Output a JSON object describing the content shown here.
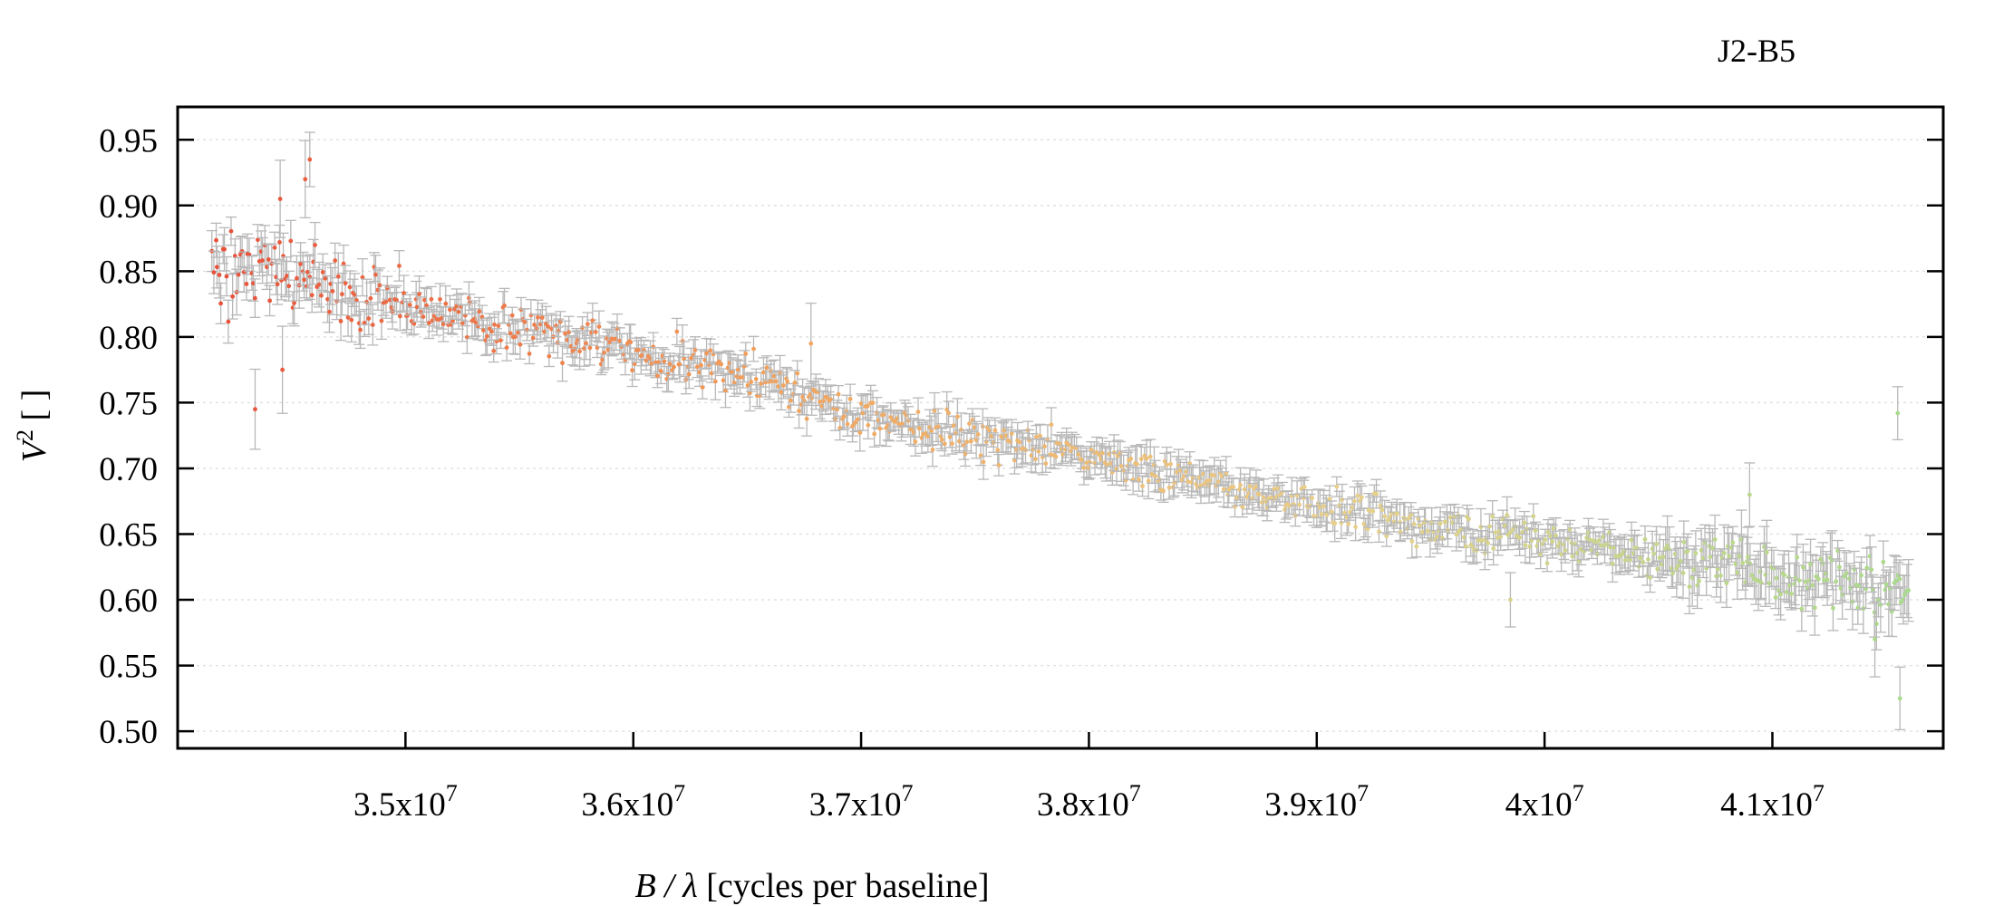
{
  "chart_data": {
    "type": "scatter",
    "title": "J2-B5",
    "xlabel_italic": "B / λ",
    "xlabel_rest": " [cycles per baseline]",
    "ylabel_base": "V",
    "ylabel_sup": "2",
    "ylabel_rest": " [ ]",
    "xlim": [
      34000000,
      41750000
    ],
    "ylim": [
      0.487,
      0.975
    ],
    "x_ticks": [
      {
        "value": 35000000,
        "mant": "3.5x10",
        "exp": "7"
      },
      {
        "value": 36000000,
        "mant": "3.6x10",
        "exp": "7"
      },
      {
        "value": 37000000,
        "mant": "3.7x10",
        "exp": "7"
      },
      {
        "value": 38000000,
        "mant": "3.8x10",
        "exp": "7"
      },
      {
        "value": 39000000,
        "mant": "3.9x10",
        "exp": "7"
      },
      {
        "value": 40000000,
        "mant": "4x10",
        "exp": "7"
      },
      {
        "value": 41000000,
        "mant": "4.1x10",
        "exp": "7"
      }
    ],
    "y_ticks": [
      {
        "value": 0.5,
        "label": "0.50"
      },
      {
        "value": 0.55,
        "label": "0.55"
      },
      {
        "value": 0.6,
        "label": "0.60"
      },
      {
        "value": 0.65,
        "label": "0.65"
      },
      {
        "value": 0.7,
        "label": "0.70"
      },
      {
        "value": 0.75,
        "label": "0.75"
      },
      {
        "value": 0.8,
        "label": "0.80"
      },
      {
        "value": 0.85,
        "label": "0.85"
      },
      {
        "value": 0.9,
        "label": "0.90"
      },
      {
        "value": 0.95,
        "label": "0.95"
      }
    ],
    "grid": "horizontal dotted",
    "legend": "none",
    "error_bars": true,
    "color_gradient": [
      "#e8503a",
      "#f3a35c",
      "#e9d08a",
      "#a8db8c"
    ],
    "error_bar_color": "#b8b8b8",
    "x_range": [
      34150000,
      41600000
    ],
    "point_count": 900,
    "trend": [
      [
        34150000,
        0.85
      ],
      [
        34600000,
        0.845
      ],
      [
        35000000,
        0.825
      ],
      [
        35500000,
        0.805
      ],
      [
        36000000,
        0.79
      ],
      [
        36500000,
        0.77
      ],
      [
        37000000,
        0.74
      ],
      [
        37500000,
        0.725
      ],
      [
        38000000,
        0.71
      ],
      [
        38500000,
        0.69
      ],
      [
        39000000,
        0.67
      ],
      [
        39500000,
        0.655
      ],
      [
        40000000,
        0.645
      ],
      [
        40500000,
        0.632
      ],
      [
        41000000,
        0.618
      ],
      [
        41600000,
        0.605
      ]
    ],
    "outliers": [
      {
        "x": 34340000,
        "y": 0.745
      },
      {
        "x": 34460000,
        "y": 0.775
      },
      {
        "x": 34450000,
        "y": 0.905
      },
      {
        "x": 34580000,
        "y": 0.935
      },
      {
        "x": 34560000,
        "y": 0.92
      },
      {
        "x": 36780000,
        "y": 0.795
      },
      {
        "x": 39850000,
        "y": 0.6
      },
      {
        "x": 40900000,
        "y": 0.68
      },
      {
        "x": 41550000,
        "y": 0.742
      },
      {
        "x": 41560000,
        "y": 0.525
      },
      {
        "x": 41450000,
        "y": 0.57
      }
    ]
  }
}
